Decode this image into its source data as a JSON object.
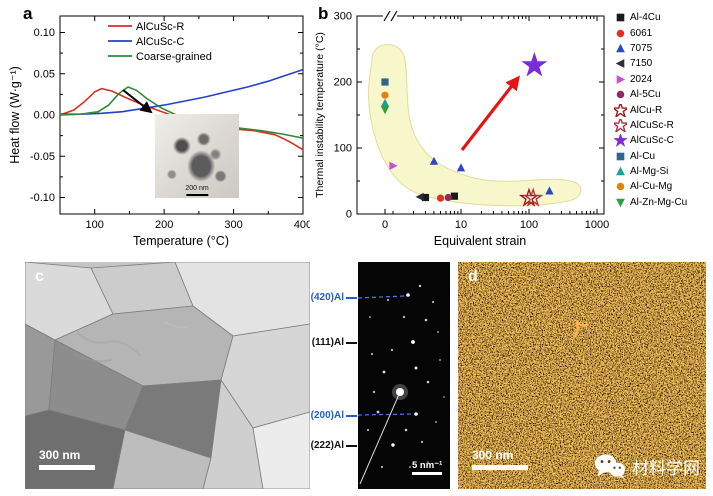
{
  "panels": {
    "a": {
      "letter": "a",
      "inset_scalebar_label": "200 nm"
    },
    "b": {
      "letter": "b"
    },
    "c": {
      "letter": "c",
      "scalebar_label": "300 nm",
      "diffraction": {
        "ring_labels": [
          "(420)Al",
          "(111)Al",
          "(200)Al",
          "(222)Al"
        ],
        "label_colors": [
          "#1f5fd0",
          "#111111",
          "#1f5fd0",
          "#111111"
        ],
        "scalebar_label": "5 nm⁻¹"
      }
    },
    "d": {
      "letter": "d",
      "scalebar_label": "300 nm",
      "watermark_text": "材料学网"
    }
  },
  "chart_data": [
    {
      "type": "line",
      "title": "",
      "xlabel": "Temperature (°C)",
      "ylabel": "Heat flow (W·g⁻¹)",
      "xlim": [
        50,
        400
      ],
      "ylim": [
        -0.12,
        0.12
      ],
      "x_ticks": [
        100,
        200,
        300,
        400
      ],
      "x_tick_labels": [
        "100",
        "200",
        "300",
        "400"
      ],
      "x_minor_ticks": [
        150,
        250,
        350
      ],
      "y_ticks": [
        0.1,
        0.05,
        0,
        -0.05,
        -0.1
      ],
      "y_tick_labels": [
        "0.10",
        "0.05",
        "0.00",
        "-0.05",
        "-0.10"
      ],
      "y_minor_ticks": [
        0.075,
        0.025,
        -0.025,
        -0.075
      ],
      "grid": false,
      "legend_position": "top-inside",
      "series": [
        {
          "name": "AlCuSc-R",
          "color": "#d93025",
          "x": [
            50,
            70,
            85,
            100,
            110,
            125,
            145,
            170,
            200,
            230,
            260,
            300,
            330,
            360,
            380,
            400
          ],
          "y": [
            0,
            0.006,
            0.016,
            0.028,
            0.032,
            0.029,
            0.021,
            0.012,
            0.003,
            -0.006,
            -0.012,
            -0.017,
            -0.019,
            -0.024,
            -0.032,
            -0.042
          ]
        },
        {
          "name": "AlCuSc-C",
          "color": "#2440c8",
          "x": [
            50,
            80,
            110,
            140,
            170,
            200,
            230,
            260,
            290,
            320,
            350,
            375,
            400
          ],
          "y": [
            0.001,
            0.001,
            0.002,
            0.004,
            0.008,
            0.012,
            0.017,
            0.022,
            0.028,
            0.034,
            0.041,
            0.048,
            0.055
          ]
        },
        {
          "name": "Coarse-grained",
          "color": "#2e8b34",
          "x": [
            50,
            80,
            105,
            120,
            135,
            148,
            160,
            175,
            195,
            215,
            240,
            270,
            300,
            340,
            370,
            400
          ],
          "y": [
            0,
            0.001,
            0.004,
            0.012,
            0.026,
            0.034,
            0.03,
            0.02,
            0.009,
            0.001,
            -0.006,
            -0.011,
            -0.015,
            -0.019,
            -0.023,
            -0.028
          ]
        }
      ]
    },
    {
      "type": "scatter",
      "title": "",
      "xlabel": "Equivalent strain",
      "ylabel": "Thermal instability temperature (°C)",
      "x_scale": "log with broken axis, 0 shown",
      "x_ticks": [
        0,
        10,
        100,
        1000
      ],
      "x_tick_labels": [
        "0",
        "10",
        "100",
        "1000"
      ],
      "ylim": [
        0,
        300
      ],
      "y_ticks": [
        0,
        100,
        200,
        300
      ],
      "y_tick_labels": [
        "0",
        "100",
        "200",
        "300"
      ],
      "y_minor_ticks": [
        50,
        150,
        250
      ],
      "grid": false,
      "legend_position": "right-outside",
      "series": [
        {
          "name": "Al-4Cu",
          "marker": "square",
          "color": "#1a1a1a",
          "points": [
            [
              3,
              25
            ],
            [
              8,
              27
            ]
          ]
        },
        {
          "name": "6061",
          "marker": "circle",
          "color": "#e03127",
          "points": [
            [
              5,
              24
            ]
          ]
        },
        {
          "name": "7075",
          "marker": "triangle-up",
          "color": "#2c46c8",
          "points": [
            [
              4,
              80
            ],
            [
              10,
              70
            ],
            [
              200,
              35
            ]
          ]
        },
        {
          "name": "7150",
          "marker": "triangle-left",
          "color": "#2b2b3a",
          "points": [
            [
              2.5,
              26
            ]
          ]
        },
        {
          "name": "2024",
          "marker": "triangle-right",
          "color": "#c94fd4",
          "points": [
            [
              1,
              73
            ]
          ]
        },
        {
          "name": "Al-5Cu",
          "marker": "circle",
          "color": "#8c2a64",
          "points": [
            [
              6.5,
              25
            ]
          ]
        },
        {
          "name": "AlCu-R",
          "marker": "star-open",
          "color": "#a01818",
          "size": 5,
          "points": [
            [
              100,
              24
            ]
          ]
        },
        {
          "name": "AlCuSc-R",
          "marker": "star-open",
          "color": "#b03048",
          "size": 5,
          "points": [
            [
              115,
              24
            ]
          ]
        },
        {
          "name": "AlCuSc-C",
          "marker": "star",
          "color": "#7c2bd9",
          "size": 8,
          "points": [
            [
              120,
              225
            ]
          ]
        },
        {
          "name": "Al-Cu",
          "marker": "square",
          "color": "#33658a",
          "points": [
            [
              0,
              200
            ]
          ]
        },
        {
          "name": "Al-Mg-Si",
          "marker": "triangle-up",
          "color": "#17a398",
          "points": [
            [
              0,
              168
            ]
          ]
        },
        {
          "name": "Al-Cu-Mg",
          "marker": "circle",
          "color": "#e08214",
          "points": [
            [
              0,
              180
            ]
          ]
        },
        {
          "name": "Al-Zn-Mg-Cu",
          "marker": "triangle-down",
          "color": "#2e9e3e",
          "points": [
            [
              0,
              158
            ]
          ]
        }
      ],
      "annotations": {
        "arrow_color": "#e81414",
        "highlight_region_fill": "#f8f6cb"
      }
    }
  ]
}
